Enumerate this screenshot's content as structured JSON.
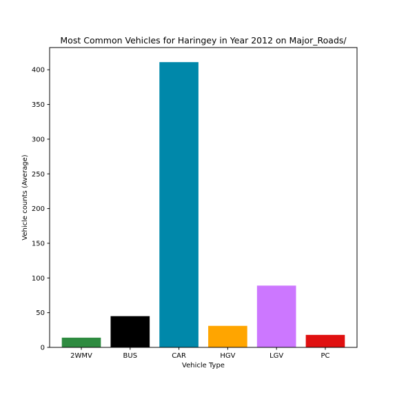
{
  "chart_data": {
    "type": "bar",
    "title": "Most Common Vehicles for Haringey in Year 2012 on Major_Roads/",
    "xlabel": "Vehicle Type",
    "ylabel": "Vehicle counts (Average)",
    "categories": [
      "2WMV",
      "BUS",
      "CAR",
      "HGV",
      "LGV",
      "PC"
    ],
    "values": [
      14,
      45,
      411,
      31,
      89,
      18
    ],
    "colors": [
      "#2e8b40",
      "#000000",
      "#0088aa",
      "#ffa500",
      "#cc77ff",
      "#e01010"
    ],
    "ylim": [
      0,
      432
    ],
    "yticks": [
      0,
      50,
      100,
      150,
      200,
      250,
      300,
      350,
      400
    ],
    "grid": false,
    "legend": "none"
  }
}
